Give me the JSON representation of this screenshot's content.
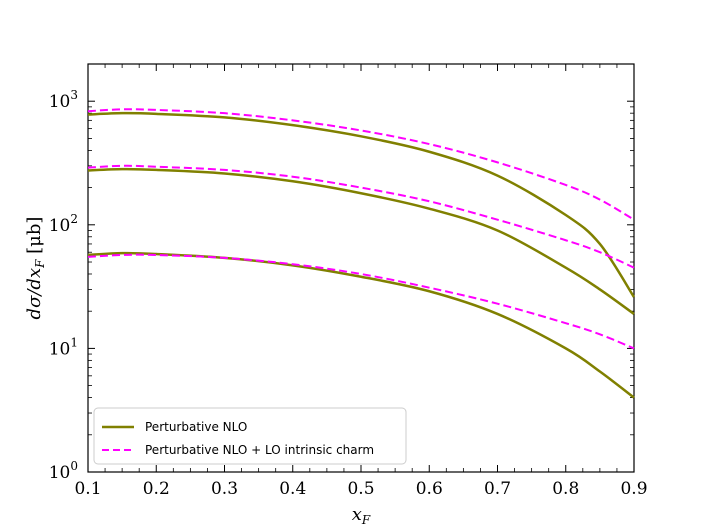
{
  "chart_data": {
    "type": "line",
    "xlabel": "x_F",
    "ylabel": "dσ/dx_F [μb]",
    "xlim": [
      0.1,
      0.9
    ],
    "ylim": [
      1,
      2000
    ],
    "yscale": "log",
    "grid": false,
    "legend_placement": "lower-left",
    "x_ticks": [
      0.1,
      0.2,
      0.3,
      0.4,
      0.5,
      0.6,
      0.7,
      0.8,
      0.9
    ],
    "x_tick_labels": [
      "0.1",
      "0.2",
      "0.3",
      "0.4",
      "0.5",
      "0.6",
      "0.7",
      "0.8",
      "0.9"
    ],
    "y_ticks": [
      1,
      10,
      100,
      1000
    ],
    "y_tick_labels": [
      {
        "base": "10",
        "exp": "0"
      },
      {
        "base": "10",
        "exp": "1"
      },
      {
        "base": "10",
        "exp": "2"
      },
      {
        "base": "10",
        "exp": "3"
      }
    ],
    "legend": [
      {
        "label": "Perturbative NLO",
        "color": "#808000",
        "dash": "solid"
      },
      {
        "label": "Perturbative NLO + LO intrinsic charm",
        "color": "#ff00ff",
        "dash": "dashed"
      }
    ],
    "x": [
      0.1,
      0.15,
      0.2,
      0.3,
      0.4,
      0.5,
      0.6,
      0.7,
      0.8,
      0.85,
      0.9
    ],
    "series": [
      {
        "group": 1,
        "style": "Perturbative NLO",
        "color": "#808000",
        "dash": "solid",
        "values": [
          780,
          800,
          790,
          740,
          640,
          520,
          390,
          250,
          120,
          70,
          26
        ]
      },
      {
        "group": 1,
        "style": "Perturbative NLO + LO intrinsic charm",
        "color": "#ff00ff",
        "dash": "dashed",
        "values": [
          830,
          860,
          850,
          800,
          700,
          580,
          450,
          320,
          210,
          160,
          110
        ]
      },
      {
        "group": 2,
        "style": "Perturbative NLO",
        "color": "#808000",
        "dash": "solid",
        "values": [
          275,
          282,
          278,
          260,
          225,
          180,
          135,
          90,
          45,
          30,
          19
        ]
      },
      {
        "group": 2,
        "style": "Perturbative NLO + LO intrinsic charm",
        "color": "#ff00ff",
        "dash": "dashed",
        "values": [
          290,
          300,
          295,
          278,
          245,
          200,
          155,
          110,
          75,
          60,
          45
        ]
      },
      {
        "group": 3,
        "style": "Perturbative NLO",
        "color": "#808000",
        "dash": "solid",
        "values": [
          57,
          59,
          58,
          54,
          47,
          38,
          29,
          19,
          10,
          6.5,
          4
        ]
      },
      {
        "group": 3,
        "style": "Perturbative NLO + LO intrinsic charm",
        "color": "#ff00ff",
        "dash": "dashed",
        "values": [
          55,
          57,
          57,
          54,
          48,
          40,
          31,
          23,
          16,
          13,
          10
        ]
      }
    ]
  }
}
